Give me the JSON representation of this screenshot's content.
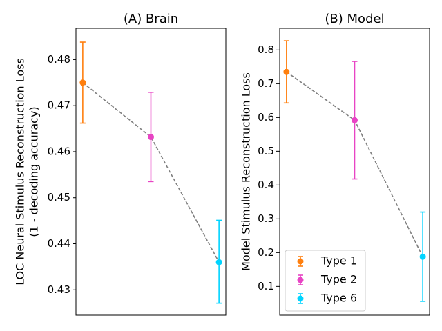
{
  "chart_data": [
    {
      "type": "scatter",
      "title": "(A) Brain",
      "xlabel": "",
      "ylabel": "LOC Neural Stimulus Reconstruction Loss\n(1 - decoding accuracy)",
      "ylim": [
        0.4245,
        0.4868
      ],
      "yticks": [
        0.43,
        0.44,
        0.45,
        0.46,
        0.47,
        0.48
      ],
      "ytick_labels": [
        "0.43",
        "0.44",
        "0.45",
        "0.46",
        "0.47",
        "0.48"
      ],
      "show_xticks": false,
      "grid": false,
      "connect_line": {
        "style": "dashed",
        "color": "#808080"
      },
      "series": [
        {
          "name": "Type 1",
          "color": "#ff7f0e",
          "x": 1,
          "y": 0.475,
          "err_low": 0.4662,
          "err_high": 0.4838
        },
        {
          "name": "Type 2",
          "color": "#e844c4",
          "x": 2,
          "y": 0.4632,
          "err_low": 0.4535,
          "err_high": 0.4729
        },
        {
          "name": "Type 6",
          "color": "#00d4ff",
          "x": 3,
          "y": 0.436,
          "err_low": 0.4271,
          "err_high": 0.4451
        }
      ]
    },
    {
      "type": "scatter",
      "title": "(B) Model",
      "xlabel": "",
      "ylabel": "Model Stimulus Reconstruction Loss",
      "ylim": [
        0.015,
        0.864
      ],
      "yticks": [
        0.1,
        0.2,
        0.3,
        0.4,
        0.5,
        0.6,
        0.7,
        0.8
      ],
      "ytick_labels": [
        "0.1",
        "0.2",
        "0.3",
        "0.4",
        "0.5",
        "0.6",
        "0.7",
        "0.8"
      ],
      "show_xticks": false,
      "grid": false,
      "legend": {
        "position": "lower-left",
        "entries": [
          "Type 1",
          "Type 2",
          "Type 6"
        ]
      },
      "connect_line": {
        "style": "dashed",
        "color": "#808080"
      },
      "series": [
        {
          "name": "Type 1",
          "color": "#ff7f0e",
          "x": 1,
          "y": 0.735,
          "err_low": 0.643,
          "err_high": 0.827
        },
        {
          "name": "Type 2",
          "color": "#e844c4",
          "x": 2,
          "y": 0.592,
          "err_low": 0.418,
          "err_high": 0.766
        },
        {
          "name": "Type 6",
          "color": "#00d4ff",
          "x": 3,
          "y": 0.188,
          "err_low": 0.056,
          "err_high": 0.32
        }
      ]
    }
  ]
}
